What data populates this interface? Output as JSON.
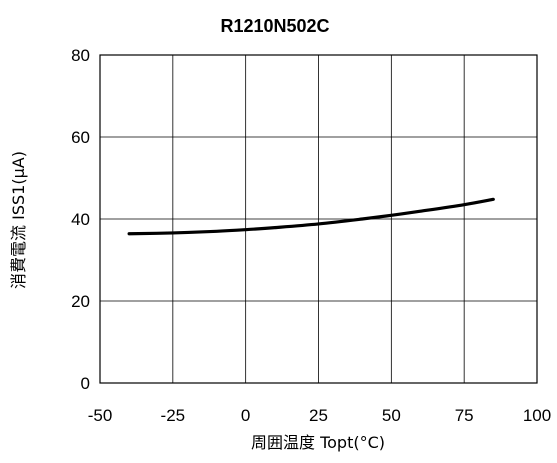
{
  "chart_data": {
    "type": "line",
    "title": "R1210N502C",
    "xlabel": "周囲温度 Topt(°C)",
    "ylabel": "消費電流 ISS1(µA)",
    "xlim": [
      -50,
      100
    ],
    "ylim": [
      0,
      80
    ],
    "x_ticks": [
      "-50",
      "-25",
      "0",
      "25",
      "50",
      "75",
      "100"
    ],
    "y_ticks": [
      "0",
      "20",
      "40",
      "60",
      "80"
    ],
    "grid": true,
    "series": [
      {
        "color": "#000000",
        "x": [
          -40,
          -25,
          -10,
          0,
          10,
          25,
          40,
          50,
          60,
          75,
          85
        ],
        "y": [
          36.4,
          36.6,
          37.0,
          37.4,
          37.9,
          38.8,
          40.0,
          40.9,
          41.9,
          43.5,
          44.8
        ]
      }
    ]
  }
}
